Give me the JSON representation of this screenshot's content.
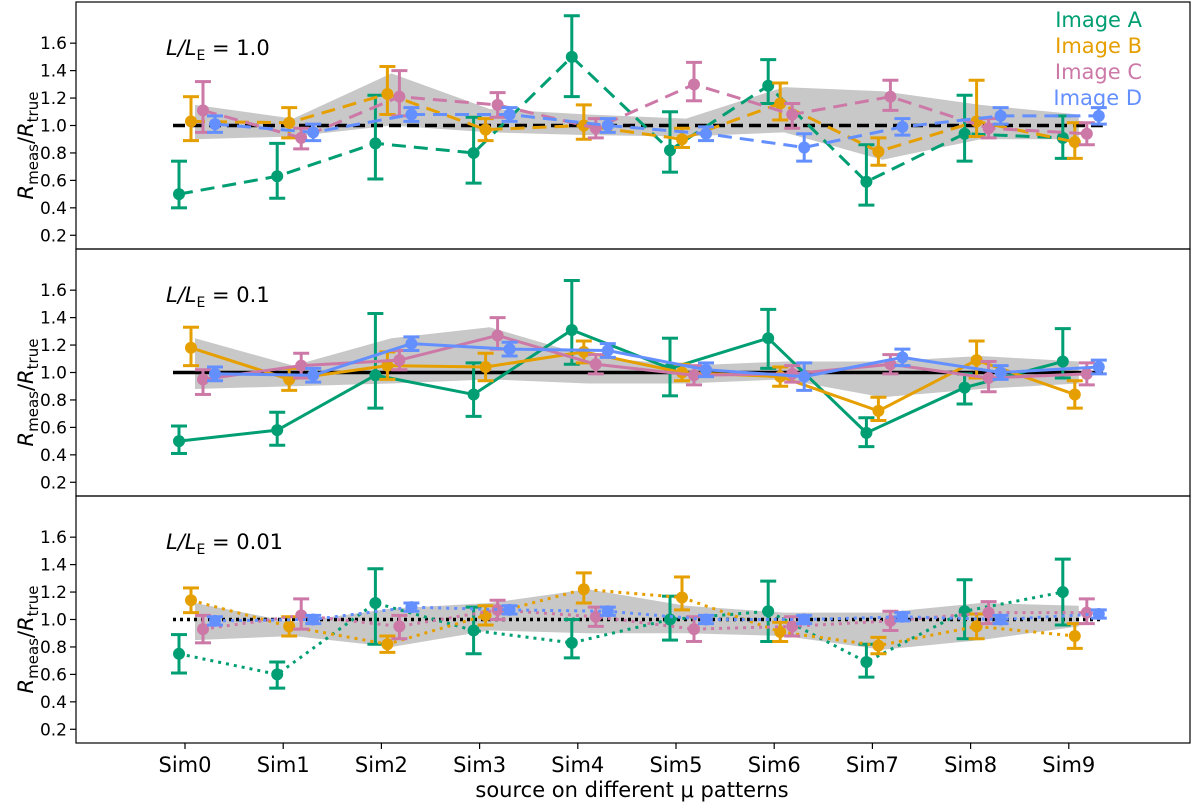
{
  "chart_data": {
    "type": "line",
    "xlabel": "source on different μ patterns",
    "ylabel_main": "R",
    "ylabel_sub1": "meas",
    "ylabel_sep": "/",
    "ylabel_sub2": "true",
    "categories": [
      "Sim0",
      "Sim1",
      "Sim2",
      "Sim3",
      "Sim4",
      "Sim5",
      "Sim6",
      "Sim7",
      "Sim8",
      "Sim9"
    ],
    "ylim": [
      0.1,
      1.9
    ],
    "yticks": [
      "0.2",
      "0.4",
      "0.6",
      "0.8",
      "1.0",
      "1.2",
      "1.4",
      "1.6"
    ],
    "legend": {
      "position": "top-right",
      "entries": [
        {
          "label": "Image A",
          "color": "#009E73"
        },
        {
          "label": "Image B",
          "color": "#E69F00"
        },
        {
          "label": "Image C",
          "color": "#CC79A7"
        },
        {
          "label": "Image D",
          "color": "#648FFF"
        }
      ]
    },
    "panels": [
      {
        "label_prefix": "L/L",
        "label_sub": "E",
        "label_value": " = 1.0",
        "line_style": "dashed",
        "reference": 1.0,
        "band_low": [
          0.9,
          0.92,
          1.0,
          0.95,
          0.93,
          0.92,
          0.95,
          0.75,
          0.9,
          0.9
        ],
        "band_high": [
          1.15,
          1.05,
          1.38,
          1.12,
          1.08,
          1.05,
          1.28,
          1.25,
          1.15,
          1.08
        ],
        "series": [
          {
            "name": "Image A",
            "color": "#009E73",
            "values": [
              0.5,
              0.63,
              0.87,
              0.8,
              1.5,
              0.82,
              1.29,
              0.59,
              0.94,
              0.91
            ],
            "err_low": [
              0.1,
              0.16,
              0.26,
              0.22,
              0.29,
              0.16,
              0.13,
              0.17,
              0.2,
              0.15
            ],
            "err_high": [
              0.24,
              0.24,
              0.35,
              0.26,
              0.3,
              0.28,
              0.19,
              0.27,
              0.28,
              0.16
            ]
          },
          {
            "name": "Image B",
            "color": "#E69F00",
            "values": [
              1.03,
              1.02,
              1.23,
              0.97,
              1.0,
              0.9,
              1.16,
              0.81,
              1.03,
              0.88
            ],
            "err_low": [
              0.14,
              0.11,
              0.15,
              0.08,
              0.1,
              0.06,
              0.12,
              0.1,
              0.11,
              0.12
            ],
            "err_high": [
              0.18,
              0.11,
              0.2,
              0.08,
              0.15,
              0.08,
              0.15,
              0.1,
              0.3,
              0.14
            ]
          },
          {
            "name": "Image C",
            "color": "#CC79A7",
            "values": [
              1.11,
              0.91,
              1.21,
              1.15,
              0.98,
              1.3,
              1.08,
              1.21,
              0.98,
              0.94
            ],
            "err_low": [
              0.16,
              0.08,
              0.14,
              0.09,
              0.07,
              0.12,
              0.1,
              0.1,
              0.07,
              0.08
            ],
            "err_high": [
              0.21,
              0.07,
              0.19,
              0.09,
              0.07,
              0.16,
              0.08,
              0.12,
              0.07,
              0.08
            ]
          },
          {
            "name": "Image D",
            "color": "#648FFF",
            "values": [
              1.01,
              0.95,
              1.08,
              1.08,
              1.0,
              0.94,
              0.84,
              0.99,
              1.07,
              1.07
            ],
            "err_low": [
              0.06,
              0.06,
              0.05,
              0.05,
              0.05,
              0.05,
              0.1,
              0.06,
              0.06,
              0.06
            ],
            "err_high": [
              0.06,
              0.06,
              0.05,
              0.05,
              0.05,
              0.05,
              0.1,
              0.06,
              0.06,
              0.06
            ]
          }
        ]
      },
      {
        "label_prefix": "L/L",
        "label_sub": "E",
        "label_value": " = 0.1",
        "line_style": "solid",
        "reference": 1.0,
        "band_low": [
          0.88,
          0.9,
          0.92,
          0.95,
          0.92,
          0.92,
          0.95,
          0.82,
          0.88,
          0.92
        ],
        "band_high": [
          1.25,
          1.05,
          1.25,
          1.33,
          1.12,
          1.05,
          1.08,
          1.08,
          1.12,
          1.08
        ],
        "series": [
          {
            "name": "Image A",
            "color": "#009E73",
            "values": [
              0.5,
              0.58,
              0.98,
              0.84,
              1.31,
              1.03,
              1.25,
              0.56,
              0.89,
              1.08
            ],
            "err_low": [
              0.09,
              0.11,
              0.24,
              0.16,
              0.25,
              0.2,
              0.22,
              0.1,
              0.12,
              0.12
            ],
            "err_high": [
              0.11,
              0.13,
              0.45,
              0.23,
              0.36,
              0.22,
              0.21,
              0.11,
              0.1,
              0.24
            ]
          },
          {
            "name": "Image B",
            "color": "#E69F00",
            "values": [
              1.18,
              0.95,
              1.05,
              1.04,
              1.15,
              1.0,
              0.97,
              0.72,
              1.09,
              0.84
            ],
            "err_low": [
              0.13,
              0.08,
              0.1,
              0.1,
              0.08,
              0.06,
              0.07,
              0.07,
              0.13,
              0.1
            ],
            "err_high": [
              0.15,
              0.08,
              0.1,
              0.1,
              0.08,
              0.06,
              0.07,
              0.1,
              0.14,
              0.1
            ]
          },
          {
            "name": "Image C",
            "color": "#CC79A7",
            "values": [
              0.95,
              1.05,
              1.09,
              1.27,
              1.06,
              0.98,
              0.99,
              1.06,
              0.96,
              0.99
            ],
            "err_low": [
              0.11,
              0.09,
              0.07,
              0.1,
              0.07,
              0.07,
              0.06,
              0.07,
              0.1,
              0.08
            ],
            "err_high": [
              0.07,
              0.09,
              0.07,
              0.13,
              0.07,
              0.07,
              0.06,
              0.07,
              0.12,
              0.08
            ]
          },
          {
            "name": "Image D",
            "color": "#648FFF",
            "values": [
              0.99,
              0.98,
              1.21,
              1.17,
              1.16,
              1.02,
              0.97,
              1.11,
              1.0,
              1.04
            ],
            "err_low": [
              0.05,
              0.05,
              0.05,
              0.05,
              0.05,
              0.05,
              0.1,
              0.06,
              0.05,
              0.05
            ],
            "err_high": [
              0.05,
              0.05,
              0.05,
              0.05,
              0.05,
              0.05,
              0.1,
              0.06,
              0.05,
              0.05
            ]
          }
        ]
      },
      {
        "label_prefix": "L/L",
        "label_sub": "E",
        "label_value": " = 0.01",
        "line_style": "dotted",
        "reference": 1.0,
        "band_low": [
          0.85,
          0.88,
          0.8,
          0.92,
          0.9,
          0.9,
          0.88,
          0.78,
          0.85,
          0.95
        ],
        "band_high": [
          1.12,
          0.98,
          1.08,
          1.12,
          1.22,
          1.1,
          1.05,
          1.05,
          1.12,
          1.1
        ],
        "series": [
          {
            "name": "Image A",
            "color": "#009E73",
            "values": [
              0.75,
              0.6,
              1.12,
              0.92,
              0.83,
              1.0,
              1.06,
              0.69,
              1.06,
              1.2
            ],
            "err_low": [
              0.14,
              0.1,
              0.3,
              0.17,
              0.11,
              0.15,
              0.22,
              0.11,
              0.2,
              0.24
            ],
            "err_high": [
              0.14,
              0.09,
              0.25,
              0.17,
              0.17,
              0.17,
              0.22,
              0.13,
              0.23,
              0.24
            ]
          },
          {
            "name": "Image B",
            "color": "#E69F00",
            "values": [
              1.14,
              0.95,
              0.82,
              1.03,
              1.22,
              1.16,
              0.91,
              0.81,
              0.95,
              0.88
            ],
            "err_low": [
              0.09,
              0.07,
              0.06,
              0.07,
              0.1,
              0.09,
              0.07,
              0.06,
              0.09,
              0.09
            ],
            "err_high": [
              0.09,
              0.07,
              0.06,
              0.07,
              0.12,
              0.15,
              0.07,
              0.06,
              0.09,
              0.09
            ]
          },
          {
            "name": "Image C",
            "color": "#CC79A7",
            "values": [
              0.93,
              1.03,
              0.95,
              1.07,
              1.02,
              0.93,
              0.95,
              0.99,
              1.05,
              1.05
            ],
            "err_low": [
              0.1,
              0.1,
              0.09,
              0.07,
              0.07,
              0.09,
              0.07,
              0.07,
              0.08,
              0.08
            ],
            "err_high": [
              0.1,
              0.12,
              0.08,
              0.07,
              0.07,
              0.09,
              0.07,
              0.07,
              0.08,
              0.1
            ]
          },
          {
            "name": "Image D",
            "color": "#648FFF",
            "values": [
              0.99,
              1.0,
              1.09,
              1.07,
              1.06,
              1.0,
              1.0,
              1.02,
              1.0,
              1.04
            ],
            "err_low": [
              0.03,
              0.03,
              0.03,
              0.03,
              0.03,
              0.03,
              0.03,
              0.03,
              0.03,
              0.03
            ],
            "err_high": [
              0.03,
              0.03,
              0.03,
              0.03,
              0.03,
              0.03,
              0.03,
              0.03,
              0.03,
              0.03
            ]
          }
        ]
      }
    ]
  }
}
